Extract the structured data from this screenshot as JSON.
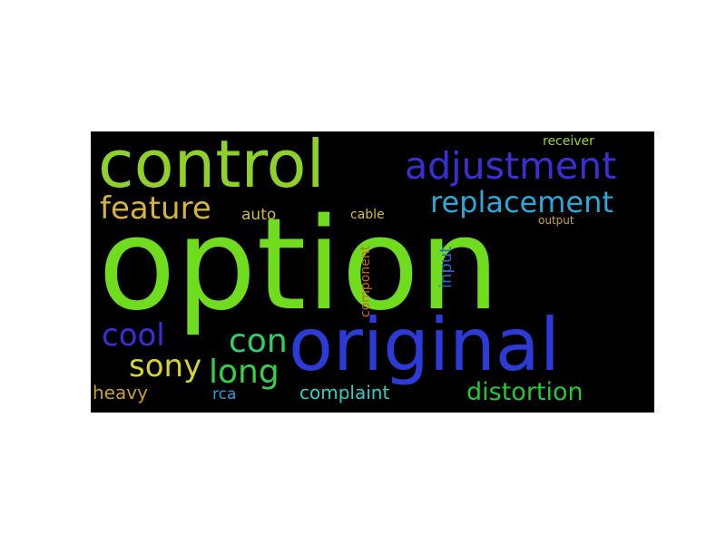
{
  "word_cloud": {
    "background": "#000000",
    "words": {
      "option": {
        "text": "option",
        "color": "#6fdc1e"
      },
      "control": {
        "text": "control",
        "color": "#8fd12a"
      },
      "adjustment": {
        "text": "adjustment",
        "color": "#3a2fd6"
      },
      "replacement": {
        "text": "replacement",
        "color": "#2aa8d8"
      },
      "feature": {
        "text": "feature",
        "color": "#d6b33a"
      },
      "auto": {
        "text": "auto",
        "color": "#d0bd33"
      },
      "cable": {
        "text": "cable",
        "color": "#d6c23a"
      },
      "receiver": {
        "text": "receiver",
        "color": "#9ad52a"
      },
      "output": {
        "text": "output",
        "color": "#c9a82c"
      },
      "original": {
        "text": "original",
        "color": "#2c3ad6"
      },
      "cool": {
        "text": "cool",
        "color": "#3a2fd6"
      },
      "con": {
        "text": "con",
        "color": "#2ad36a"
      },
      "sony": {
        "text": "sony",
        "color": "#d8d52a"
      },
      "long": {
        "text": "long",
        "color": "#34d04a"
      },
      "heavy": {
        "text": "heavy",
        "color": "#c9a02c"
      },
      "rca": {
        "text": "rca",
        "color": "#2a9fd6"
      },
      "complaint": {
        "text": "complaint",
        "color": "#2ad3c6"
      },
      "distortion": {
        "text": "distortion",
        "color": "#22c93a"
      },
      "component": {
        "text": "component",
        "color": "#d06a1a"
      },
      "input": {
        "text": "input",
        "color": "#2a6ad6"
      }
    }
  }
}
